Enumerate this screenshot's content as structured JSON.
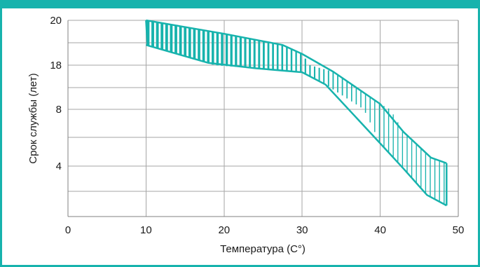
{
  "chart_data": {
    "type": "area",
    "xlabel": "Температура (C°)",
    "ylabel": "Срок службы (лет)",
    "xlim": [
      0,
      50
    ],
    "x_ticks": [
      0,
      10,
      20,
      30,
      40,
      50
    ],
    "y_tick_labels": [
      "20",
      "18",
      "8",
      "4"
    ],
    "grid": true,
    "series": [
      {
        "x": [
          10,
          20,
          27.5,
          30,
          34,
          40,
          43,
          46.5,
          48.5
        ],
        "values": [
          20,
          19.4,
          18.9,
          18.5,
          16.5,
          9.2,
          6.4,
          4.6,
          4.2
        ]
      },
      {
        "x": [
          10,
          18,
          24,
          30,
          33,
          40,
          43,
          46,
          48.5
        ],
        "values": [
          18.9,
          18.1,
          17.3,
          16.4,
          13.6,
          5.6,
          3.9,
          2.9,
          2.5
        ]
      }
    ],
    "fill_color": "#17b3ad",
    "line_color": "#17b3ad"
  }
}
